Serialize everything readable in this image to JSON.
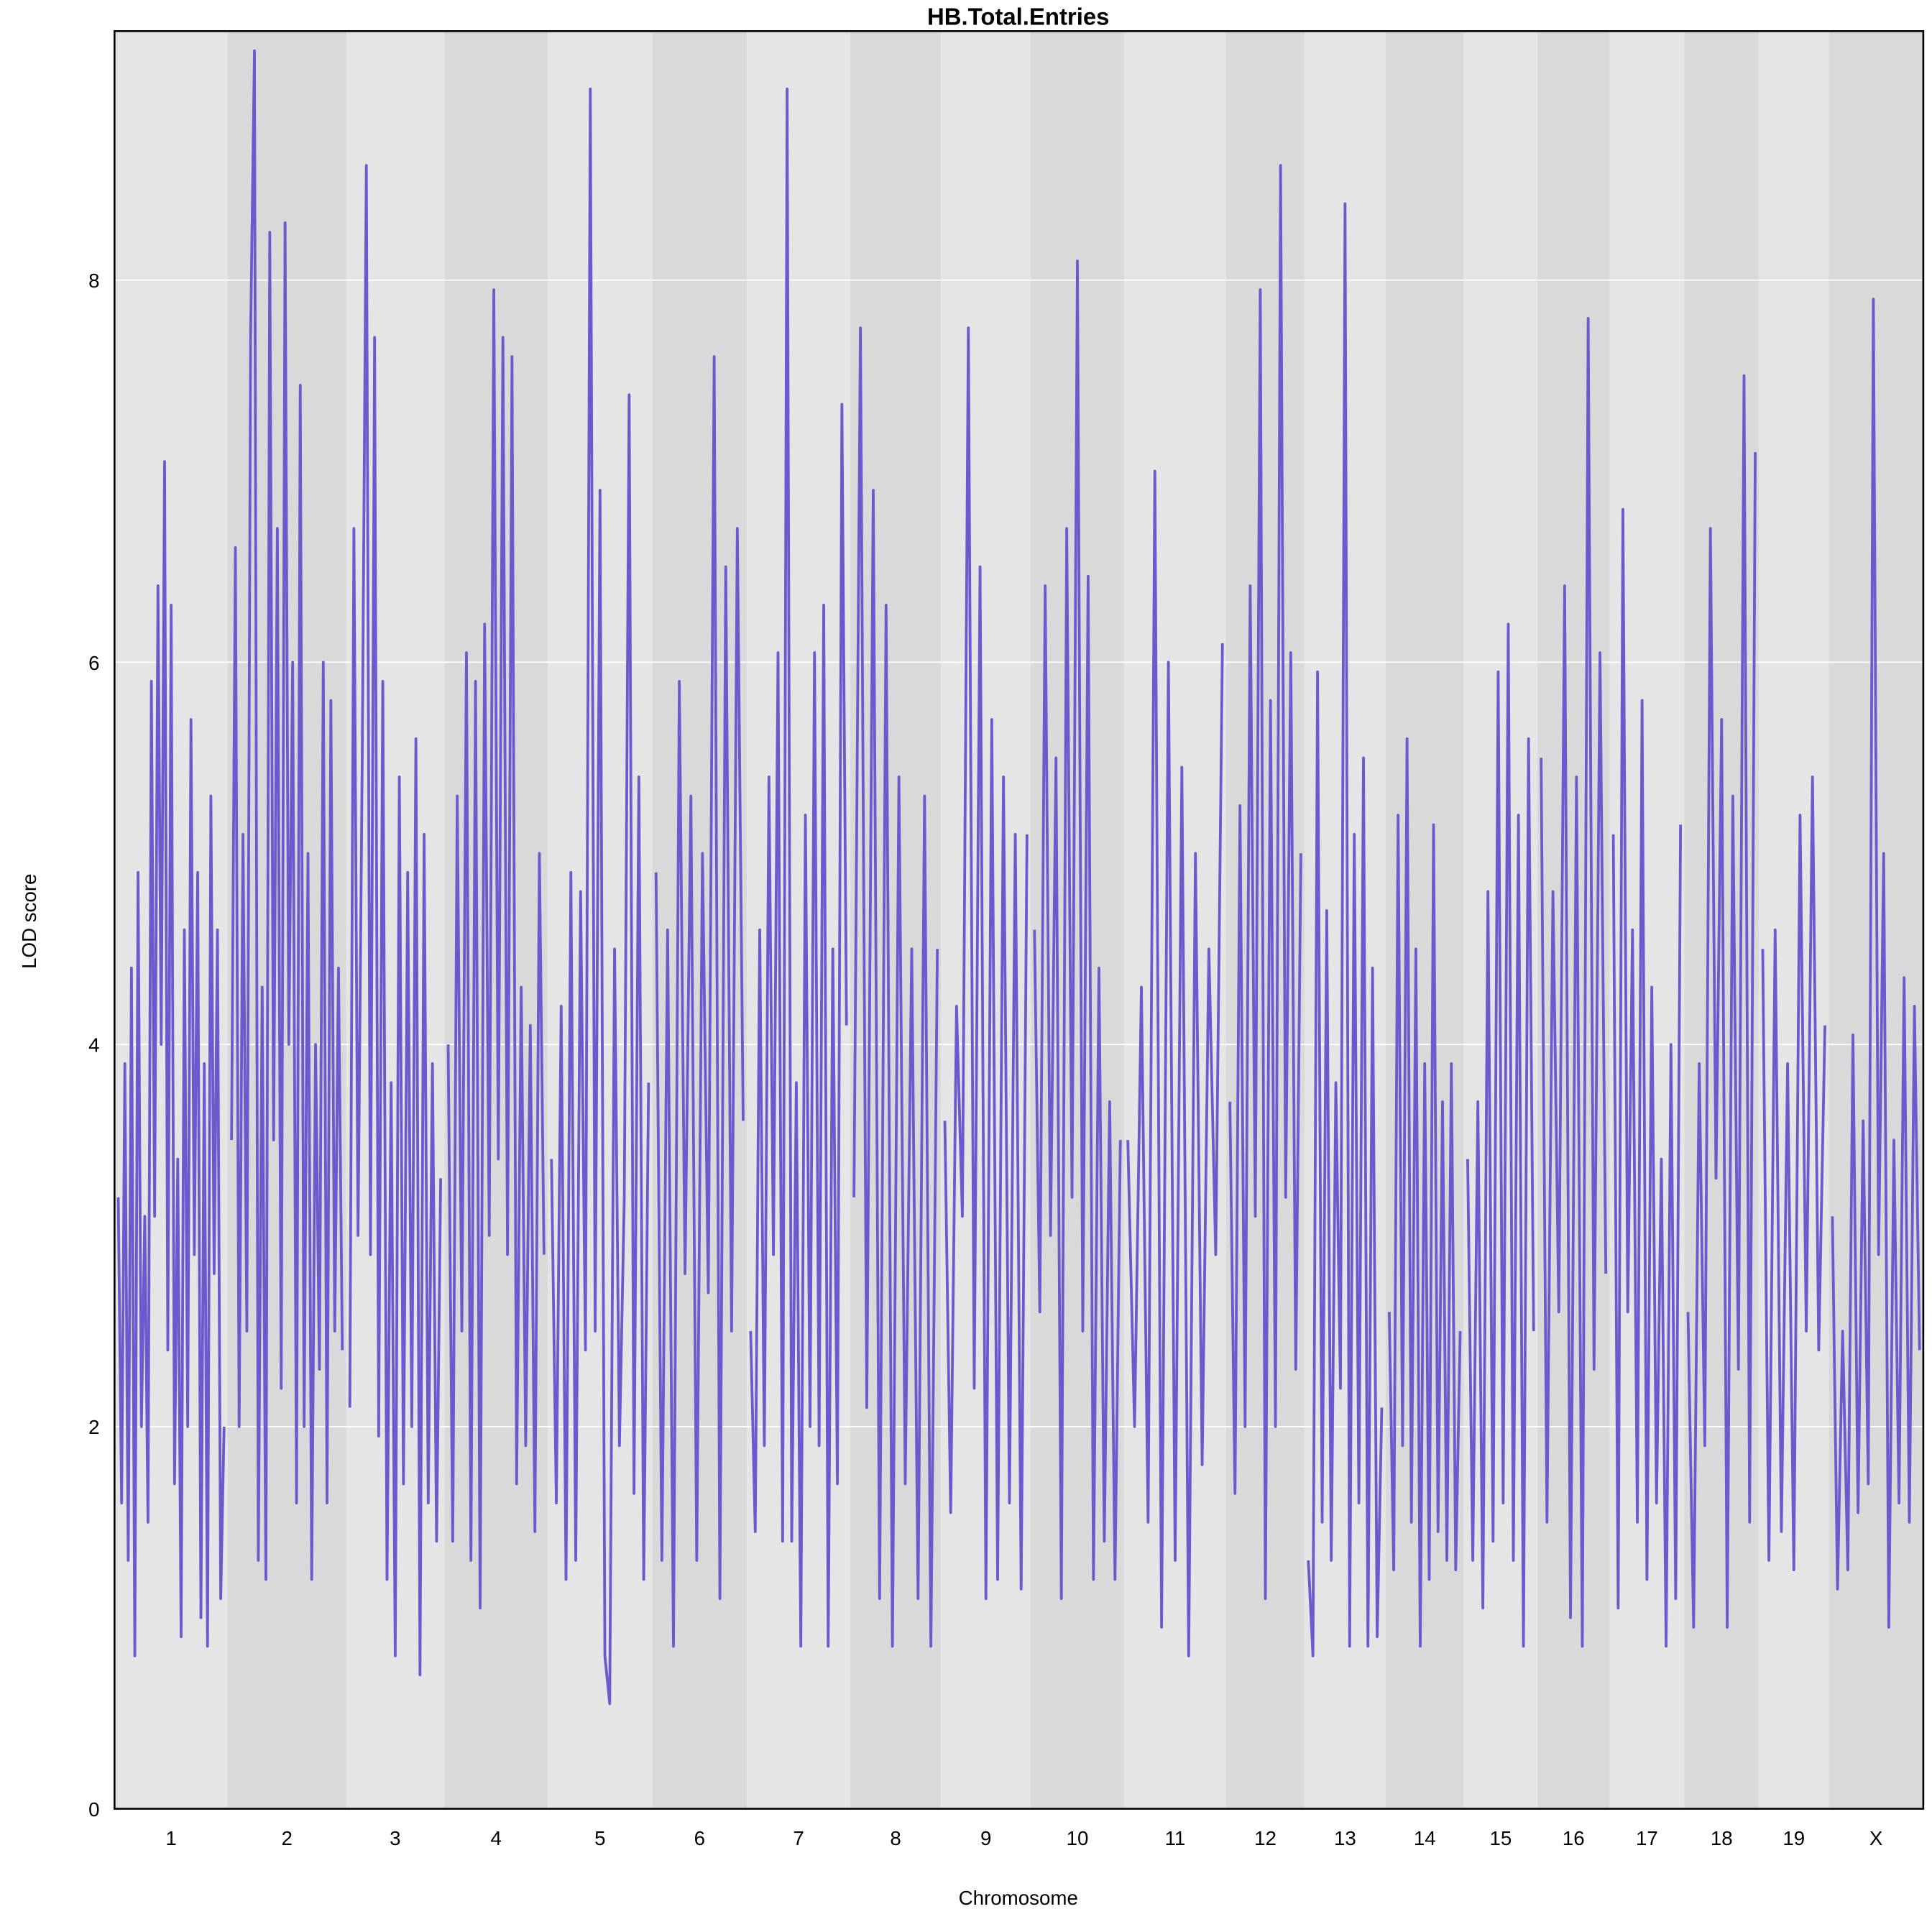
{
  "chart_data": {
    "type": "line",
    "title": "HB.Total.Entries",
    "xlabel": "Chromosome",
    "ylabel": "LOD score",
    "ylim": [
      0,
      9.3
    ],
    "yticks": [
      0,
      2,
      4,
      6,
      8
    ],
    "grid": true,
    "line_color": "#6a5acd",
    "band_colors": [
      "#e5e5e5",
      "#d9d9d9"
    ],
    "chromosomes": [
      {
        "label": "1",
        "values": [
          3.2,
          1.6,
          3.9,
          1.3,
          4.4,
          0.8,
          4.9,
          2.0,
          3.1,
          1.5,
          5.9,
          3.1,
          6.4,
          4.0,
          7.05,
          2.4,
          6.3,
          1.7,
          3.4,
          0.9,
          4.6,
          2.0,
          5.7,
          2.9,
          4.9,
          1.0,
          3.9,
          0.85,
          5.3,
          2.8,
          4.6,
          1.1,
          2.0
        ]
      },
      {
        "label": "2",
        "values": [
          3.5,
          6.6,
          2.0,
          5.1,
          2.5,
          7.7,
          9.2,
          1.3,
          4.3,
          1.2,
          8.25,
          3.5,
          6.7,
          2.2,
          8.3,
          4.0,
          6.0,
          1.6,
          7.45,
          2.0,
          5.0,
          1.2,
          4.0,
          2.3,
          6.0,
          1.6,
          5.8,
          2.5,
          4.4,
          2.4
        ]
      },
      {
        "label": "3",
        "values": [
          2.1,
          6.7,
          3.0,
          5.5,
          8.6,
          2.9,
          7.7,
          1.95,
          5.9,
          1.2,
          3.8,
          0.8,
          5.4,
          1.7,
          4.9,
          2.0,
          5.6,
          0.7,
          5.1,
          1.6,
          3.9,
          1.4,
          3.3
        ]
      },
      {
        "label": "4",
        "values": [
          4.0,
          1.4,
          5.3,
          2.5,
          6.05,
          1.3,
          5.9,
          1.05,
          6.2,
          3.0,
          7.95,
          3.4,
          7.7,
          2.9,
          7.6,
          1.7,
          4.3,
          1.9,
          4.1,
          1.45,
          5.0,
          2.9
        ]
      },
      {
        "label": "5",
        "values": [
          3.4,
          1.6,
          4.2,
          1.2,
          4.9,
          1.3,
          4.8,
          2.4,
          9.0,
          2.5,
          6.9,
          0.8,
          0.55,
          4.5,
          1.9,
          3.2,
          7.4,
          1.65,
          5.4,
          1.2,
          3.8
        ]
      },
      {
        "label": "6",
        "values": [
          4.9,
          1.3,
          4.6,
          0.85,
          5.9,
          2.8,
          5.3,
          1.3,
          5.0,
          2.7,
          7.6,
          1.1,
          6.5,
          2.5,
          6.7,
          3.6
        ]
      },
      {
        "label": "7",
        "values": [
          2.5,
          1.45,
          4.6,
          1.9,
          5.4,
          2.9,
          6.05,
          1.4,
          9.0,
          1.4,
          3.8,
          0.85,
          5.2,
          2.0,
          6.05,
          1.9,
          6.3,
          0.85,
          4.5,
          1.7,
          7.35,
          4.1
        ]
      },
      {
        "label": "8",
        "values": [
          3.2,
          7.75,
          2.1,
          6.9,
          1.1,
          6.3,
          0.85,
          5.4,
          1.7,
          4.5,
          1.1,
          5.3,
          0.85,
          4.5
        ]
      },
      {
        "label": "9",
        "values": [
          3.6,
          1.55,
          4.2,
          3.1,
          7.75,
          2.2,
          6.5,
          1.1,
          5.7,
          1.2,
          5.4,
          1.6,
          5.1,
          1.15,
          5.1
        ]
      },
      {
        "label": "10",
        "values": [
          4.6,
          2.6,
          6.4,
          3.0,
          5.5,
          1.1,
          6.7,
          3.2,
          8.1,
          2.5,
          6.45,
          1.2,
          4.4,
          1.4,
          3.7,
          1.2,
          3.5
        ]
      },
      {
        "label": "11",
        "values": [
          3.5,
          2.0,
          4.3,
          1.5,
          7.0,
          0.95,
          6.0,
          1.3,
          5.45,
          0.8,
          5.0,
          1.8,
          4.5,
          2.9,
          6.1
        ]
      },
      {
        "label": "12",
        "values": [
          3.7,
          1.65,
          5.25,
          2.0,
          6.4,
          3.1,
          7.95,
          1.1,
          5.8,
          2.0,
          8.6,
          3.2,
          6.05,
          2.3,
          5.0
        ]
      },
      {
        "label": "13",
        "values": [
          1.3,
          0.8,
          5.95,
          1.5,
          4.7,
          1.3,
          3.8,
          2.2,
          8.4,
          0.85,
          5.1,
          1.6,
          5.5,
          0.85,
          4.4,
          0.9,
          2.1
        ]
      },
      {
        "label": "14",
        "values": [
          2.6,
          1.25,
          5.2,
          1.9,
          5.6,
          1.5,
          4.5,
          0.85,
          3.9,
          1.2,
          5.15,
          1.45,
          3.7,
          1.3,
          3.9,
          1.25,
          2.5
        ]
      },
      {
        "label": "15",
        "values": [
          3.4,
          1.3,
          3.7,
          1.05,
          4.8,
          1.4,
          5.95,
          1.6,
          6.2,
          1.3,
          5.2,
          0.85,
          5.6,
          2.5
        ]
      },
      {
        "label": "16",
        "values": [
          5.5,
          1.5,
          4.8,
          2.6,
          6.4,
          1.0,
          5.4,
          0.85,
          7.8,
          2.3,
          6.05,
          2.8
        ]
      },
      {
        "label": "17",
        "values": [
          5.1,
          1.05,
          6.8,
          2.6,
          4.6,
          1.5,
          5.8,
          1.2,
          4.3,
          1.6,
          3.4,
          0.85,
          4.0,
          1.1,
          5.15
        ]
      },
      {
        "label": "18",
        "values": [
          2.6,
          0.95,
          3.9,
          1.9,
          6.7,
          3.3,
          5.7,
          0.95,
          5.3,
          2.3,
          7.5,
          1.5,
          7.1
        ]
      },
      {
        "label": "19",
        "values": [
          4.5,
          1.3,
          4.6,
          1.45,
          3.9,
          1.25,
          5.2,
          2.5,
          5.4,
          2.4,
          4.1
        ]
      },
      {
        "label": "X",
        "values": [
          3.1,
          1.15,
          2.5,
          1.25,
          4.05,
          1.55,
          3.6,
          1.7,
          7.9,
          2.9,
          5.0,
          0.95,
          3.5,
          1.6,
          4.35,
          1.5,
          4.2,
          2.4
        ]
      }
    ]
  }
}
